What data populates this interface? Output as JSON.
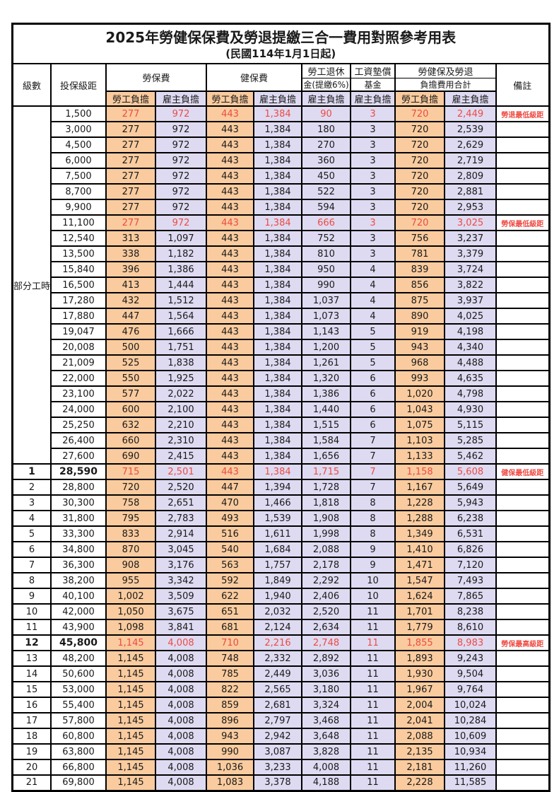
{
  "title": "2025年勞健保保費及勞退提繳三合一費用對照參考用表",
  "subtitle": "(民國114年1月1日起)",
  "columns": {
    "level": "級數",
    "bracket": "投保級距",
    "labor_insurance": "勞保費",
    "health_insurance": "健保費",
    "pension_line1": "勞工退休",
    "pension_line2": "金(提繳6%)",
    "fund_line1": "工資墊償",
    "fund_line2": "基金",
    "total_line1": "勞健保及勞退",
    "total_line2": "負擔費用合計",
    "remark": "備註",
    "employee_share": "勞工負擔",
    "employer_share": "雇主負擔"
  },
  "part_time_label": "部分工時",
  "part_time_rowspan": 23,
  "colors": {
    "employee_bg": "#f9cb9e",
    "employer_bg": "#dedaf1",
    "highlight_red": "#ee4b43",
    "border": "#000000"
  },
  "rows": [
    {
      "bracket": "1,500",
      "cells": [
        "277",
        "972",
        "443",
        "1,384",
        "90",
        "3",
        "720",
        "2,449"
      ],
      "remark": "勞退最低級距",
      "red": true,
      "bold": false
    },
    {
      "bracket": "3,000",
      "cells": [
        "277",
        "972",
        "443",
        "1,384",
        "180",
        "3",
        "720",
        "2,539"
      ],
      "remark": "",
      "red": false,
      "bold": false
    },
    {
      "bracket": "4,500",
      "cells": [
        "277",
        "972",
        "443",
        "1,384",
        "270",
        "3",
        "720",
        "2,629"
      ],
      "remark": "",
      "red": false,
      "bold": false
    },
    {
      "bracket": "6,000",
      "cells": [
        "277",
        "972",
        "443",
        "1,384",
        "360",
        "3",
        "720",
        "2,719"
      ],
      "remark": "",
      "red": false,
      "bold": false
    },
    {
      "bracket": "7,500",
      "cells": [
        "277",
        "972",
        "443",
        "1,384",
        "450",
        "3",
        "720",
        "2,809"
      ],
      "remark": "",
      "red": false,
      "bold": false
    },
    {
      "bracket": "8,700",
      "cells": [
        "277",
        "972",
        "443",
        "1,384",
        "522",
        "3",
        "720",
        "2,881"
      ],
      "remark": "",
      "red": false,
      "bold": false
    },
    {
      "bracket": "9,900",
      "cells": [
        "277",
        "972",
        "443",
        "1,384",
        "594",
        "3",
        "720",
        "2,953"
      ],
      "remark": "",
      "red": false,
      "bold": false
    },
    {
      "bracket": "11,100",
      "cells": [
        "277",
        "972",
        "443",
        "1,384",
        "666",
        "3",
        "720",
        "3,025"
      ],
      "remark": "勞保最低級距",
      "red": true,
      "bold": false
    },
    {
      "bracket": "12,540",
      "cells": [
        "313",
        "1,097",
        "443",
        "1,384",
        "752",
        "3",
        "756",
        "3,237"
      ],
      "remark": "",
      "red": false,
      "bold": false
    },
    {
      "bracket": "13,500",
      "cells": [
        "338",
        "1,182",
        "443",
        "1,384",
        "810",
        "3",
        "781",
        "3,379"
      ],
      "remark": "",
      "red": false,
      "bold": false
    },
    {
      "bracket": "15,840",
      "cells": [
        "396",
        "1,386",
        "443",
        "1,384",
        "950",
        "4",
        "839",
        "3,724"
      ],
      "remark": "",
      "red": false,
      "bold": false
    },
    {
      "bracket": "16,500",
      "cells": [
        "413",
        "1,444",
        "443",
        "1,384",
        "990",
        "4",
        "856",
        "3,822"
      ],
      "remark": "",
      "red": false,
      "bold": false
    },
    {
      "bracket": "17,280",
      "cells": [
        "432",
        "1,512",
        "443",
        "1,384",
        "1,037",
        "4",
        "875",
        "3,937"
      ],
      "remark": "",
      "red": false,
      "bold": false
    },
    {
      "bracket": "17,880",
      "cells": [
        "447",
        "1,564",
        "443",
        "1,384",
        "1,073",
        "4",
        "890",
        "4,025"
      ],
      "remark": "",
      "red": false,
      "bold": false
    },
    {
      "bracket": "19,047",
      "cells": [
        "476",
        "1,666",
        "443",
        "1,384",
        "1,143",
        "5",
        "919",
        "4,198"
      ],
      "remark": "",
      "red": false,
      "bold": false
    },
    {
      "bracket": "20,008",
      "cells": [
        "500",
        "1,751",
        "443",
        "1,384",
        "1,200",
        "5",
        "943",
        "4,340"
      ],
      "remark": "",
      "red": false,
      "bold": false
    },
    {
      "bracket": "21,009",
      "cells": [
        "525",
        "1,838",
        "443",
        "1,384",
        "1,261",
        "5",
        "968",
        "4,488"
      ],
      "remark": "",
      "red": false,
      "bold": false
    },
    {
      "bracket": "22,000",
      "cells": [
        "550",
        "1,925",
        "443",
        "1,384",
        "1,320",
        "6",
        "993",
        "4,635"
      ],
      "remark": "",
      "red": false,
      "bold": false
    },
    {
      "bracket": "23,100",
      "cells": [
        "577",
        "2,022",
        "443",
        "1,384",
        "1,386",
        "6",
        "1,020",
        "4,798"
      ],
      "remark": "",
      "red": false,
      "bold": false
    },
    {
      "bracket": "24,000",
      "cells": [
        "600",
        "2,100",
        "443",
        "1,384",
        "1,440",
        "6",
        "1,043",
        "4,930"
      ],
      "remark": "",
      "red": false,
      "bold": false
    },
    {
      "bracket": "25,250",
      "cells": [
        "632",
        "2,210",
        "443",
        "1,384",
        "1,515",
        "6",
        "1,075",
        "5,115"
      ],
      "remark": "",
      "red": false,
      "bold": false
    },
    {
      "bracket": "26,400",
      "cells": [
        "660",
        "2,310",
        "443",
        "1,384",
        "1,584",
        "7",
        "1,103",
        "5,285"
      ],
      "remark": "",
      "red": false,
      "bold": false
    },
    {
      "bracket": "27,600",
      "cells": [
        "690",
        "2,415",
        "443",
        "1,384",
        "1,656",
        "7",
        "1,133",
        "5,462"
      ],
      "remark": "",
      "red": false,
      "bold": false
    },
    {
      "level": "1",
      "bracket": "28,590",
      "cells": [
        "715",
        "2,501",
        "443",
        "1,384",
        "1,715",
        "7",
        "1,158",
        "5,608"
      ],
      "remark": "健保最低級距",
      "red": true,
      "bold": true
    },
    {
      "level": "2",
      "bracket": "28,800",
      "cells": [
        "720",
        "2,520",
        "447",
        "1,394",
        "1,728",
        "7",
        "1,167",
        "5,649"
      ],
      "remark": "",
      "red": false,
      "bold": false
    },
    {
      "level": "3",
      "bracket": "30,300",
      "cells": [
        "758",
        "2,651",
        "470",
        "1,466",
        "1,818",
        "8",
        "1,228",
        "5,943"
      ],
      "remark": "",
      "red": false,
      "bold": false
    },
    {
      "level": "4",
      "bracket": "31,800",
      "cells": [
        "795",
        "2,783",
        "493",
        "1,539",
        "1,908",
        "8",
        "1,288",
        "6,238"
      ],
      "remark": "",
      "red": false,
      "bold": false
    },
    {
      "level": "5",
      "bracket": "33,300",
      "cells": [
        "833",
        "2,914",
        "516",
        "1,611",
        "1,998",
        "8",
        "1,349",
        "6,531"
      ],
      "remark": "",
      "red": false,
      "bold": false
    },
    {
      "level": "6",
      "bracket": "34,800",
      "cells": [
        "870",
        "3,045",
        "540",
        "1,684",
        "2,088",
        "9",
        "1,410",
        "6,826"
      ],
      "remark": "",
      "red": false,
      "bold": false
    },
    {
      "level": "7",
      "bracket": "36,300",
      "cells": [
        "908",
        "3,176",
        "563",
        "1,757",
        "2,178",
        "9",
        "1,471",
        "7,120"
      ],
      "remark": "",
      "red": false,
      "bold": false
    },
    {
      "level": "8",
      "bracket": "38,200",
      "cells": [
        "955",
        "3,342",
        "592",
        "1,849",
        "2,292",
        "10",
        "1,547",
        "7,493"
      ],
      "remark": "",
      "red": false,
      "bold": false
    },
    {
      "level": "9",
      "bracket": "40,100",
      "cells": [
        "1,002",
        "3,509",
        "622",
        "1,940",
        "2,406",
        "10",
        "1,624",
        "7,865"
      ],
      "remark": "",
      "red": false,
      "bold": false
    },
    {
      "level": "10",
      "bracket": "42,000",
      "cells": [
        "1,050",
        "3,675",
        "651",
        "2,032",
        "2,520",
        "11",
        "1,701",
        "8,238"
      ],
      "remark": "",
      "red": false,
      "bold": false
    },
    {
      "level": "11",
      "bracket": "43,900",
      "cells": [
        "1,098",
        "3,841",
        "681",
        "2,124",
        "2,634",
        "11",
        "1,779",
        "8,610"
      ],
      "remark": "",
      "red": false,
      "bold": false
    },
    {
      "level": "12",
      "bracket": "45,800",
      "cells": [
        "1,145",
        "4,008",
        "710",
        "2,216",
        "2,748",
        "11",
        "1,855",
        "8,983"
      ],
      "remark": "勞保最高級距",
      "red": true,
      "bold": true
    },
    {
      "level": "13",
      "bracket": "48,200",
      "cells": [
        "1,145",
        "4,008",
        "748",
        "2,332",
        "2,892",
        "11",
        "1,893",
        "9,243"
      ],
      "remark": "",
      "red": false,
      "bold": false
    },
    {
      "level": "14",
      "bracket": "50,600",
      "cells": [
        "1,145",
        "4,008",
        "785",
        "2,449",
        "3,036",
        "11",
        "1,930",
        "9,504"
      ],
      "remark": "",
      "red": false,
      "bold": false
    },
    {
      "level": "15",
      "bracket": "53,000",
      "cells": [
        "1,145",
        "4,008",
        "822",
        "2,565",
        "3,180",
        "11",
        "1,967",
        "9,764"
      ],
      "remark": "",
      "red": false,
      "bold": false
    },
    {
      "level": "16",
      "bracket": "55,400",
      "cells": [
        "1,145",
        "4,008",
        "859",
        "2,681",
        "3,324",
        "11",
        "2,004",
        "10,024"
      ],
      "remark": "",
      "red": false,
      "bold": false
    },
    {
      "level": "17",
      "bracket": "57,800",
      "cells": [
        "1,145",
        "4,008",
        "896",
        "2,797",
        "3,468",
        "11",
        "2,041",
        "10,284"
      ],
      "remark": "",
      "red": false,
      "bold": false
    },
    {
      "level": "18",
      "bracket": "60,800",
      "cells": [
        "1,145",
        "4,008",
        "943",
        "2,942",
        "3,648",
        "11",
        "2,088",
        "10,609"
      ],
      "remark": "",
      "red": false,
      "bold": false
    },
    {
      "level": "19",
      "bracket": "63,800",
      "cells": [
        "1,145",
        "4,008",
        "990",
        "3,087",
        "3,828",
        "11",
        "2,135",
        "10,934"
      ],
      "remark": "",
      "red": false,
      "bold": false
    },
    {
      "level": "20",
      "bracket": "66,800",
      "cells": [
        "1,145",
        "4,008",
        "1,036",
        "3,233",
        "4,008",
        "11",
        "2,181",
        "11,260"
      ],
      "remark": "",
      "red": false,
      "bold": false
    },
    {
      "level": "21",
      "bracket": "69,800",
      "cells": [
        "1,145",
        "4,008",
        "1,083",
        "3,378",
        "4,188",
        "11",
        "2,228",
        "11,585"
      ],
      "remark": "",
      "red": false,
      "bold": false
    }
  ]
}
